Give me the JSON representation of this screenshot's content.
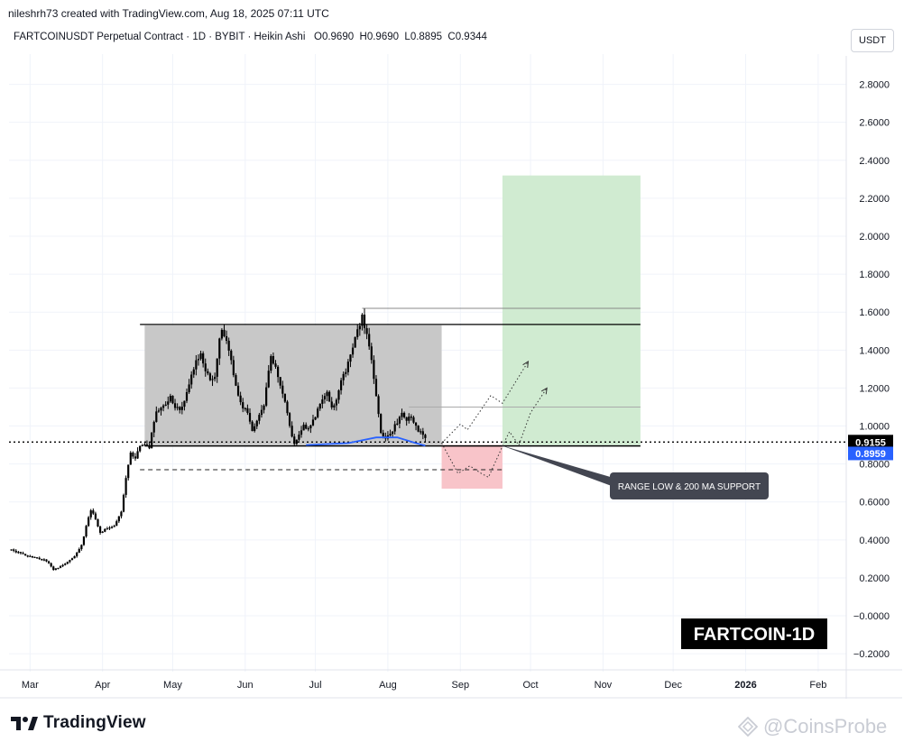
{
  "header": {
    "created_line": "nileshrh73 created with TradingView.com, Aug 18, 2025 07:11 UTC",
    "symbol_line": "FARTCOINUSDT Perpetual Contract · 1D · BYBIT · Heikin Ashi",
    "ohlc": {
      "o_label": "O",
      "o_value": "0.9690",
      "h_label": "H",
      "h_value": "0.9690",
      "l_label": "L",
      "l_value": "0.8895",
      "c_label": "C",
      "c_value": "0.9344"
    }
  },
  "currency_button": "USDT",
  "footer": {
    "logo_text": "TradingView",
    "watermark": "@CoinsProbe"
  },
  "colors": {
    "candle": "#000000",
    "range_box": "#c8c8c8",
    "target_box": "#d0ebd1",
    "stop_box": "#f8c4c9",
    "ma_line": "#2962ff",
    "price_badge": "#000000",
    "ma_badge": "#2962ff",
    "callout_bg": "#434651"
  },
  "chart_data": {
    "type": "candlestick",
    "style": "Heikin Ashi",
    "y_axis_labels": [
      "2.8000",
      "2.6000",
      "2.4000",
      "2.2000",
      "2.0000",
      "1.8000",
      "1.6000",
      "1.4000",
      "1.2000",
      "1.0000",
      "0.8000",
      "0.6000",
      "0.4000",
      "0.2000",
      "−0.0000",
      "−0.2000"
    ],
    "y_range": [
      -0.28,
      2.95
    ],
    "x_labels": [
      {
        "label": "Mar",
        "date": "2025-03-01"
      },
      {
        "label": "Apr",
        "date": "2025-04-01"
      },
      {
        "label": "May",
        "date": "2025-05-01"
      },
      {
        "label": "Jun",
        "date": "2025-06-01"
      },
      {
        "label": "Jul",
        "date": "2025-07-01"
      },
      {
        "label": "Aug",
        "date": "2025-08-01"
      },
      {
        "label": "Sep",
        "date": "2025-09-01"
      },
      {
        "label": "Oct",
        "date": "2025-10-01"
      },
      {
        "label": "Nov",
        "date": "2025-11-01"
      },
      {
        "label": "Dec",
        "date": "2025-12-01"
      },
      {
        "label": "2026",
        "date": "2026-01-01",
        "bold": true
      },
      {
        "label": "Feb",
        "date": "2026-02-01"
      }
    ],
    "x_range": [
      "2025-02-20",
      "2026-02-13"
    ],
    "close_path": [
      [
        "2025-02-20",
        0.35
      ],
      [
        "2025-02-25",
        0.33
      ],
      [
        "2025-03-01",
        0.31
      ],
      [
        "2025-03-05",
        0.3
      ],
      [
        "2025-03-08",
        0.29
      ],
      [
        "2025-03-11",
        0.24
      ],
      [
        "2025-03-15",
        0.27
      ],
      [
        "2025-03-19",
        0.3
      ],
      [
        "2025-03-23",
        0.37
      ],
      [
        "2025-03-25",
        0.47
      ],
      [
        "2025-03-27",
        0.56
      ],
      [
        "2025-03-29",
        0.51
      ],
      [
        "2025-03-31",
        0.44
      ],
      [
        "2025-04-03",
        0.46
      ],
      [
        "2025-04-06",
        0.47
      ],
      [
        "2025-04-09",
        0.55
      ],
      [
        "2025-04-11",
        0.72
      ],
      [
        "2025-04-13",
        0.86
      ],
      [
        "2025-04-15",
        0.83
      ],
      [
        "2025-04-17",
        0.89
      ],
      [
        "2025-04-19",
        0.9
      ],
      [
        "2025-04-21",
        0.88
      ],
      [
        "2025-04-22",
        0.97
      ],
      [
        "2025-04-24",
        1.07
      ],
      [
        "2025-04-27",
        1.1
      ],
      [
        "2025-04-30",
        1.16
      ],
      [
        "2025-05-02",
        1.1
      ],
      [
        "2025-05-04",
        1.08
      ],
      [
        "2025-05-06",
        1.13
      ],
      [
        "2025-05-08",
        1.22
      ],
      [
        "2025-05-11",
        1.35
      ],
      [
        "2025-05-13",
        1.37
      ],
      [
        "2025-05-15",
        1.3
      ],
      [
        "2025-05-17",
        1.24
      ],
      [
        "2025-05-19",
        1.27
      ],
      [
        "2025-05-21",
        1.45
      ],
      [
        "2025-05-22",
        1.52
      ],
      [
        "2025-05-24",
        1.45
      ],
      [
        "2025-05-26",
        1.34
      ],
      [
        "2025-05-28",
        1.22
      ],
      [
        "2025-05-30",
        1.12
      ],
      [
        "2025-06-02",
        1.07
      ],
      [
        "2025-06-04",
        0.98
      ],
      [
        "2025-06-06",
        1.02
      ],
      [
        "2025-06-09",
        1.11
      ],
      [
        "2025-06-11",
        1.3
      ],
      [
        "2025-06-12",
        1.37
      ],
      [
        "2025-06-14",
        1.3
      ],
      [
        "2025-06-16",
        1.22
      ],
      [
        "2025-06-18",
        1.12
      ],
      [
        "2025-06-20",
        1.0
      ],
      [
        "2025-06-22",
        0.9
      ],
      [
        "2025-06-24",
        0.96
      ],
      [
        "2025-06-26",
        1.01
      ],
      [
        "2025-06-28",
        0.98
      ],
      [
        "2025-07-01",
        1.05
      ],
      [
        "2025-07-04",
        1.15
      ],
      [
        "2025-07-06",
        1.17
      ],
      [
        "2025-07-08",
        1.1
      ],
      [
        "2025-07-10",
        1.13
      ],
      [
        "2025-07-12",
        1.25
      ],
      [
        "2025-07-14",
        1.29
      ],
      [
        "2025-07-16",
        1.37
      ],
      [
        "2025-07-18",
        1.47
      ],
      [
        "2025-07-20",
        1.53
      ],
      [
        "2025-07-21",
        1.58
      ],
      [
        "2025-07-23",
        1.48
      ],
      [
        "2025-07-25",
        1.35
      ],
      [
        "2025-07-27",
        1.15
      ],
      [
        "2025-07-29",
        0.97
      ],
      [
        "2025-07-31",
        0.93
      ],
      [
        "2025-08-02",
        0.96
      ],
      [
        "2025-08-05",
        1.02
      ],
      [
        "2025-08-07",
        1.07
      ],
      [
        "2025-08-09",
        1.03
      ],
      [
        "2025-08-11",
        1.05
      ],
      [
        "2025-08-14",
        0.98
      ],
      [
        "2025-08-17",
        0.93
      ]
    ],
    "range_box": {
      "from": "2025-04-19",
      "to": "2025-08-24",
      "low": 0.9,
      "high": 1.53
    },
    "range_top_line": {
      "from": "2025-04-17",
      "to": "2025-11-17",
      "value": 1.535
    },
    "range_low_line": {
      "from": "2025-04-19",
      "to": "2025-11-17",
      "value": 0.895
    },
    "prior_high_line": {
      "from": "2025-07-21",
      "to": "2025-11-17",
      "value": 1.62
    },
    "local_high_line": {
      "from": "2025-08-10",
      "to": "2025-11-17",
      "value": 1.1
    },
    "support_dashed": {
      "from": "2025-04-17",
      "to": "2025-09-19",
      "value": 0.77
    },
    "target_box": {
      "from": "2025-09-19",
      "to": "2025-11-17",
      "low": 0.9,
      "high": 2.32
    },
    "stop_box": {
      "from": "2025-08-24",
      "to": "2025-09-19",
      "low": 0.67,
      "high": 0.9
    },
    "projection_up": [
      [
        "2025-08-24",
        0.91
      ],
      [
        "2025-09-01",
        1.01
      ],
      [
        "2025-09-04",
        0.98
      ],
      [
        "2025-09-14",
        1.16
      ],
      [
        "2025-09-19",
        1.12
      ],
      [
        "2025-09-30",
        1.34
      ]
    ],
    "projection_down": [
      [
        "2025-08-24",
        0.91
      ],
      [
        "2025-08-31",
        0.75
      ],
      [
        "2025-09-05",
        0.79
      ],
      [
        "2025-09-10",
        0.75
      ],
      [
        "2025-09-13",
        0.73
      ],
      [
        "2025-09-20",
        0.92
      ],
      [
        "2025-09-22",
        0.97
      ],
      [
        "2025-09-26",
        0.9
      ],
      [
        "2025-10-01",
        1.07
      ],
      [
        "2025-10-08",
        1.2
      ]
    ],
    "ma_200": [
      [
        "2025-06-27",
        0.9
      ],
      [
        "2025-07-15",
        0.91
      ],
      [
        "2025-07-27",
        0.94
      ],
      [
        "2025-08-05",
        0.94
      ],
      [
        "2025-08-13",
        0.91
      ],
      [
        "2025-08-17",
        0.896
      ]
    ],
    "price_line": {
      "value": 0.9155,
      "label": "0.9155"
    },
    "ma_badge": {
      "value": 0.8959,
      "label": "0.8959"
    },
    "callout": {
      "text": "RANGE LOW & 200 MA SUPPORT",
      "anchor_date": "2025-09-18",
      "anchor_value": 0.9
    },
    "badge_label": "FARTCOIN-1D",
    "grid": true
  }
}
